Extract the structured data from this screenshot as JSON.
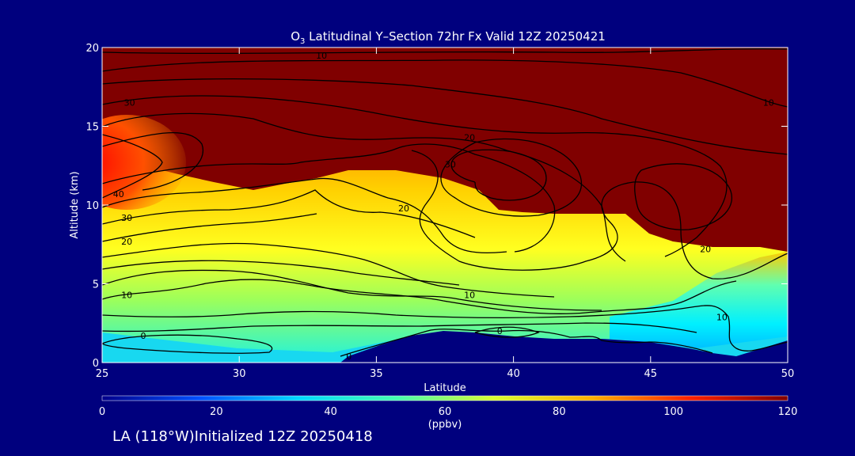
{
  "chart_data": {
    "type": "heatmap",
    "title": "O3 Latitudinal Y-Section 72hr  Fx Valid 12Z 20250421",
    "title_main": "O",
    "title_sub": "3",
    "title_rest": " Latitudinal Y–Section 72hr  Fx Valid 12Z 20250421",
    "xlabel": "Latitude",
    "ylabel": "Altitude (km)",
    "xlim": [
      25,
      50
    ],
    "ylim": [
      0,
      20
    ],
    "x_ticks": [
      25,
      30,
      35,
      40,
      45,
      50
    ],
    "y_ticks": [
      0,
      5,
      10,
      15,
      20
    ],
    "colorbar": {
      "min": 0,
      "max": 120,
      "ticks": [
        0,
        20,
        40,
        60,
        80,
        100,
        120
      ],
      "unit": "(ppbv)",
      "colors": [
        "#00008b",
        "#0050ff",
        "#00d8ff",
        "#44ffb0",
        "#d8ff30",
        "#ffb000",
        "#ff2000",
        "#800000"
      ]
    },
    "contour_labels": [
      {
        "text": "10",
        "lat": 33.0,
        "alt": 19.5
      },
      {
        "text": "10",
        "lat": 49.3,
        "alt": 16.5
      },
      {
        "text": "30",
        "lat": 26.0,
        "alt": 16.5
      },
      {
        "text": "20",
        "lat": 38.4,
        "alt": 14.3
      },
      {
        "text": "30",
        "lat": 37.7,
        "alt": 12.6
      },
      {
        "text": "40",
        "lat": 25.6,
        "alt": 10.7
      },
      {
        "text": "30",
        "lat": 25.9,
        "alt": 9.2
      },
      {
        "text": "20",
        "lat": 25.9,
        "alt": 7.7
      },
      {
        "text": "20",
        "lat": 36.0,
        "alt": 9.8
      },
      {
        "text": "10",
        "lat": 25.9,
        "alt": 4.3
      },
      {
        "text": "10",
        "lat": 38.4,
        "alt": 4.3
      },
      {
        "text": "10",
        "lat": 47.6,
        "alt": 2.9
      },
      {
        "text": "20",
        "lat": 47.0,
        "alt": 7.2
      },
      {
        "text": "0",
        "lat": 26.5,
        "alt": 1.7
      },
      {
        "text": "0",
        "lat": 34.0,
        "alt": 0.4
      },
      {
        "text": "0",
        "lat": 39.5,
        "alt": 2.0
      }
    ]
  },
  "footer": "LA (118°W)Initialized 12Z 20250418"
}
